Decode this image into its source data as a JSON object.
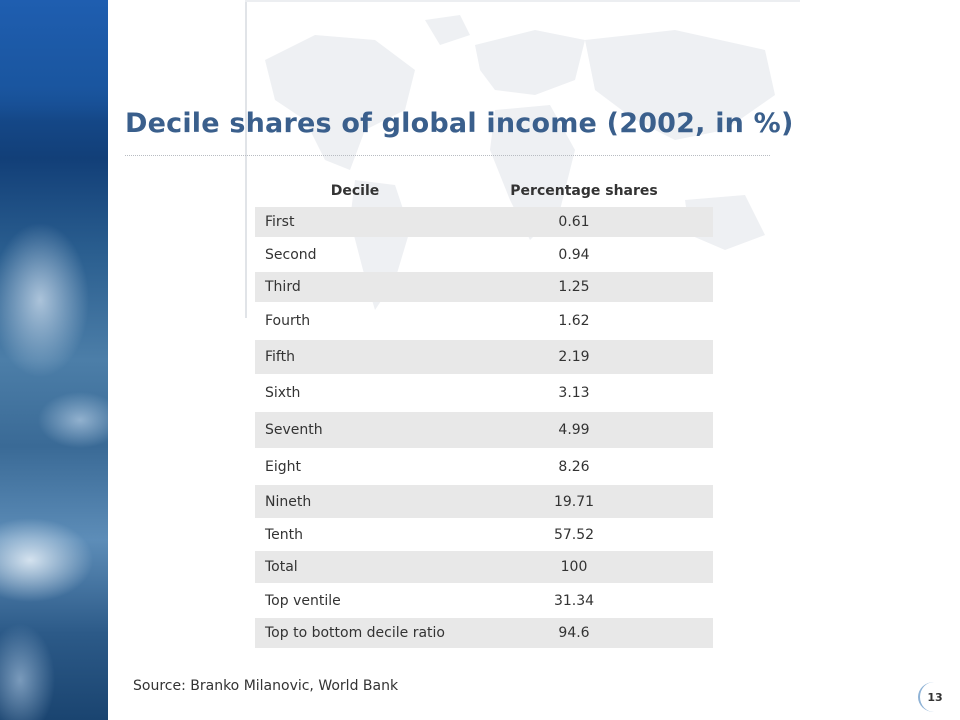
{
  "slide": {
    "title": "Decile shares of global income (2002, in %)",
    "source": "Source: Branko Milanovic, World Bank",
    "page_number": "13"
  },
  "table": {
    "headers": [
      "Decile",
      "Percentage shares"
    ],
    "rows": [
      {
        "label": "First",
        "value": "0.61"
      },
      {
        "label": "Second",
        "value": "0.94"
      },
      {
        "label": "Third",
        "value": "1.25"
      },
      {
        "label": "Fourth",
        "value": "1.62"
      },
      {
        "label": "Fifth",
        "value": "2.19"
      },
      {
        "label": "Sixth",
        "value": "3.13"
      },
      {
        "label": "Seventh",
        "value": "4.99"
      },
      {
        "label": "Eight",
        "value": "8.26"
      },
      {
        "label": "Nineth",
        "value": "19.71"
      },
      {
        "label": "Tenth",
        "value": "57.52"
      },
      {
        "label": "Total",
        "value": "100"
      },
      {
        "label": "Top ventile",
        "value": "31.34"
      },
      {
        "label": "Top to bottom decile ratio",
        "value": "94.6"
      }
    ]
  },
  "colors": {
    "title": "#3a5f8c",
    "row_shade": "#e8e8e8",
    "earth_blue": "#1d5aa8"
  }
}
